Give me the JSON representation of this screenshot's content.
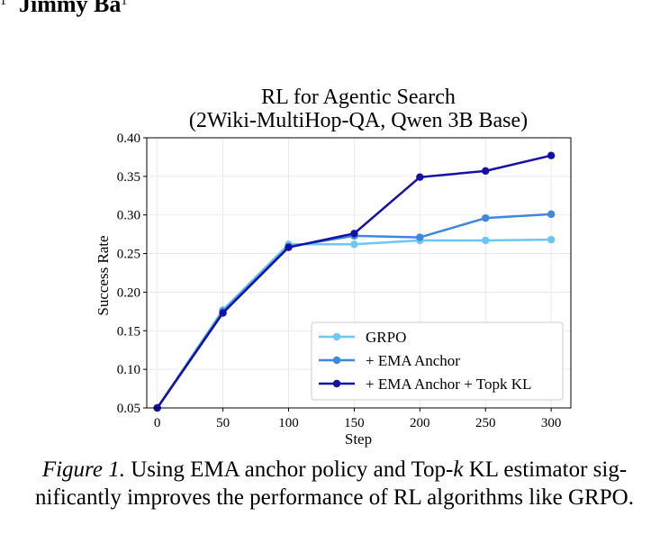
{
  "header": {
    "author_sup_left": "1",
    "author_name": "Jimmy Ba",
    "author_sup_right": "1"
  },
  "caption": {
    "figure_label": "Figure 1.",
    "line1_pre": " Using EMA anchor policy and Top-",
    "line1_var": "k",
    "line1_post": " KL estimator sig-",
    "line2": "nificantly improves the performance of RL algorithms like GRPO."
  },
  "chart_data": {
    "type": "line",
    "title_line1": "RL for Agentic Search",
    "title_line2": "(2Wiki-MultiHop-QA, Qwen 3B Base)",
    "xlabel": "Step",
    "ylabel": "Success Rate",
    "x": [
      0,
      50,
      100,
      150,
      200,
      250,
      300
    ],
    "xlim": [
      -8,
      315
    ],
    "ylim": [
      0.05,
      0.4
    ],
    "xticks": [
      0,
      50,
      100,
      150,
      200,
      250,
      300
    ],
    "yticks": [
      0.05,
      0.1,
      0.15,
      0.2,
      0.25,
      0.3,
      0.35,
      0.4
    ],
    "grid": true,
    "legend_position": "lower-right",
    "series": [
      {
        "name": "GRPO",
        "color": "#6ec6f5",
        "values": [
          0.05,
          0.177,
          0.262,
          0.262,
          0.267,
          0.267,
          0.268
        ]
      },
      {
        "name": "+ EMA Anchor",
        "color": "#3c87e0",
        "values": [
          0.05,
          0.175,
          0.259,
          0.273,
          0.271,
          0.296,
          0.301
        ]
      },
      {
        "name": "+ EMA Anchor + Topk KL",
        "color": "#1510a8",
        "values": [
          0.05,
          0.173,
          0.258,
          0.276,
          0.349,
          0.357,
          0.377
        ]
      }
    ]
  }
}
